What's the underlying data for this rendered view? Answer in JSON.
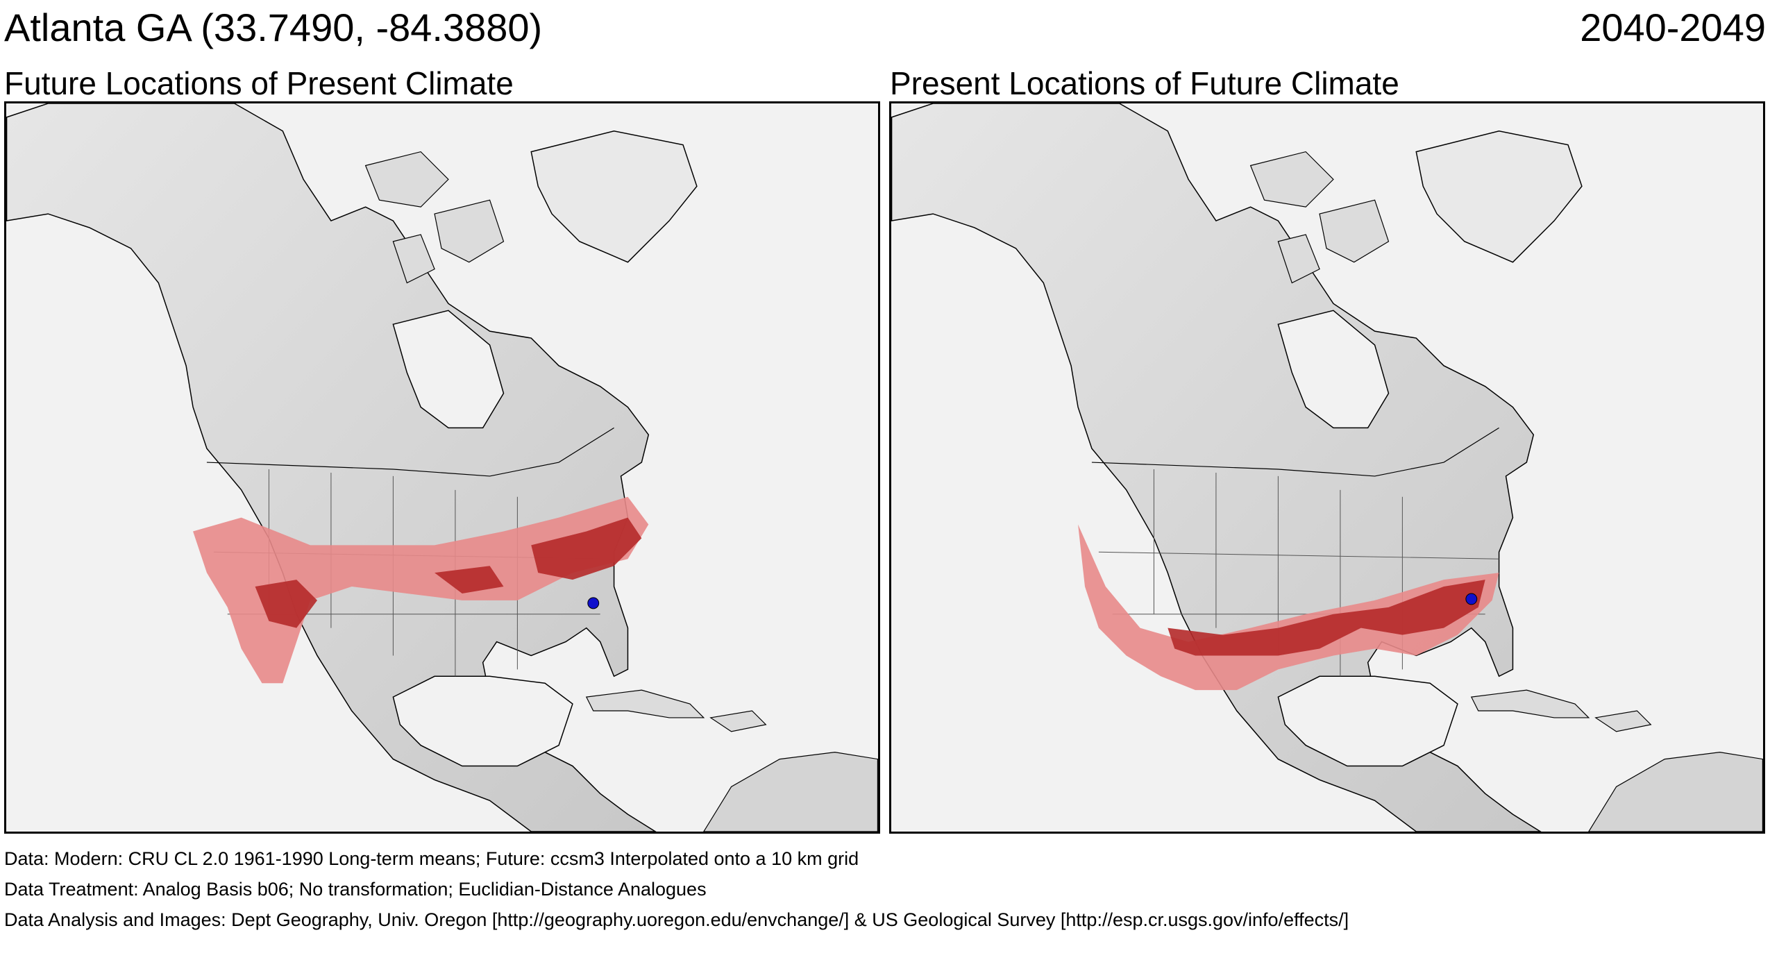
{
  "header": {
    "location": "Atlanta GA  (33.7490, -84.3880)",
    "period": "2040-2049"
  },
  "panels": [
    {
      "title": "Future Locations of Present Climate",
      "marker": "Atlanta GA",
      "highlight_colors": {
        "analog": "#e88a8a",
        "strong_analog": "#b52a2a"
      }
    },
    {
      "title": "Present Locations of Future Climate",
      "marker": "Atlanta GA",
      "highlight_colors": {
        "analog": "#e88a8a",
        "strong_analog": "#b52a2a"
      }
    }
  ],
  "colors": {
    "land": "#d7d7d7",
    "water": "#f2f2f2",
    "marker": "#1010cc",
    "border": "#000000"
  },
  "footnotes": {
    "data": "Data:  Modern: CRU CL 2.0 1961-1990 Long-term means; Future: ccsm3 Interpolated onto a 10 km grid",
    "treatment": "Data Treatment:  Analog Basis b06; No transformation; Euclidian-Distance Analogues",
    "analysis": "Data Analysis and Images:  Dept Geography, Univ. Oregon [http://geography.uoregon.edu/envchange/] & US Geological Survey [http://esp.cr.usgs.gov/info/effects/]"
  }
}
